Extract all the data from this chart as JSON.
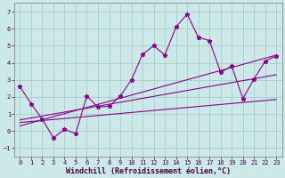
{
  "xlabel": "Windchill (Refroidissement éolien,°C)",
  "background_color": "#cce8e8",
  "grid_color": "#aacccc",
  "line_color": "#880088",
  "xlim": [
    -0.5,
    23.5
  ],
  "ylim": [
    -1.5,
    7.5
  ],
  "xticks": [
    0,
    1,
    2,
    3,
    4,
    5,
    6,
    7,
    8,
    9,
    10,
    11,
    12,
    13,
    14,
    15,
    16,
    17,
    18,
    19,
    20,
    21,
    22,
    23
  ],
  "yticks": [
    -1,
    0,
    1,
    2,
    3,
    4,
    5,
    6,
    7
  ],
  "series1_x": [
    0,
    1,
    2,
    3,
    4,
    5,
    6,
    7,
    8,
    9,
    10,
    11,
    12,
    13,
    14,
    15,
    16,
    17,
    18,
    19,
    20,
    21,
    22,
    23
  ],
  "series1_y": [
    2.6,
    1.6,
    0.7,
    -0.4,
    0.1,
    -0.15,
    2.05,
    1.4,
    1.45,
    2.05,
    3.0,
    4.5,
    5.0,
    4.45,
    6.1,
    6.85,
    5.5,
    5.3,
    3.45,
    3.8,
    1.9,
    3.05,
    4.1,
    4.4
  ],
  "series2_x": [
    0,
    23
  ],
  "series2_y": [
    0.65,
    3.3
  ],
  "series3_x": [
    0,
    23
  ],
  "series3_y": [
    0.5,
    1.85
  ],
  "series4_x": [
    0,
    23
  ],
  "series4_y": [
    0.3,
    4.45
  ],
  "markersize": 3.5,
  "linewidth": 0.8,
  "tick_fontsize": 5.0,
  "label_fontsize": 6.0
}
